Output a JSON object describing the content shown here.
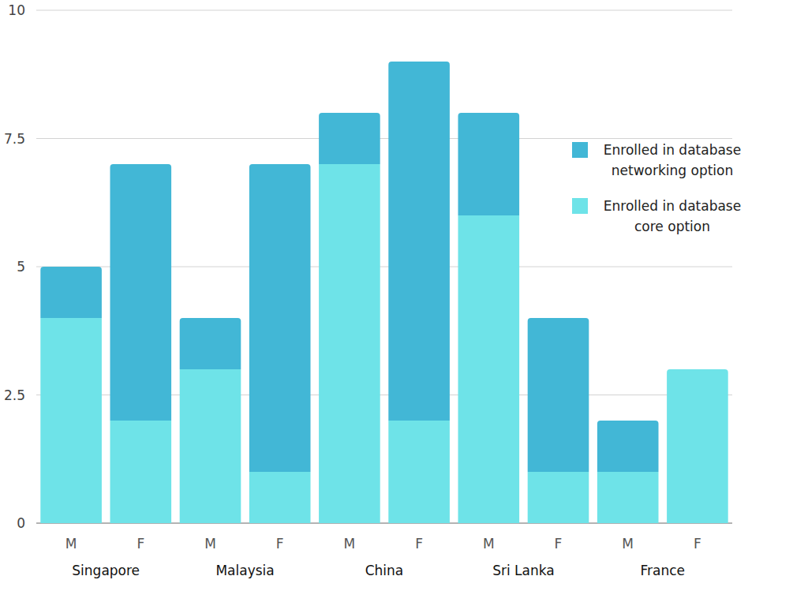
{
  "chart_data": {
    "type": "bar",
    "stacked": true,
    "grid": true,
    "legend": "right",
    "categories": [
      "M",
      "F",
      "M",
      "F",
      "M",
      "F",
      "M",
      "F",
      "M",
      "F"
    ],
    "groups": [
      "Singapore",
      "Malaysia",
      "China",
      "Sri Lanka",
      "France"
    ],
    "series": [
      {
        "name": "Enrolled in database core option",
        "color": "#6ee3e8",
        "values": [
          4,
          2,
          3,
          1,
          7,
          2,
          6,
          1,
          1,
          3
        ]
      },
      {
        "name": "Enrolled in database networking option",
        "color": "#42b7d6",
        "values": [
          1,
          5,
          1,
          6,
          1,
          7,
          2,
          3,
          1,
          0
        ]
      }
    ],
    "ylim": [
      0,
      10
    ],
    "yticks": [
      0,
      2.5,
      5,
      7.5,
      10
    ]
  }
}
